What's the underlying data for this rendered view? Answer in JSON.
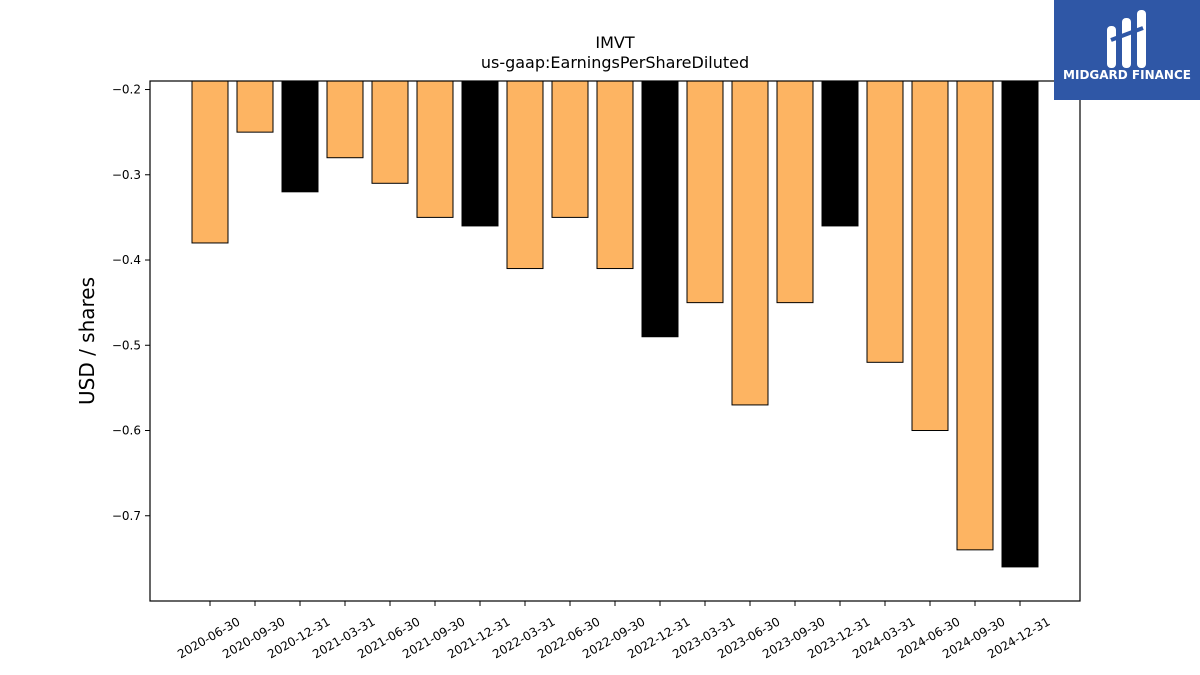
{
  "logo": {
    "text": "MIDGARD FINANCE",
    "background": "#2f57a6"
  },
  "chart_data": {
    "type": "bar",
    "title": "IMVT",
    "subtitle": "us-gaap:EarningsPerShareDiluted",
    "ylabel": "USD / shares",
    "xlabel": "",
    "ylim": [
      -0.8,
      -0.19
    ],
    "yticks": [
      -0.2,
      -0.3,
      -0.4,
      -0.5,
      -0.6,
      -0.7
    ],
    "yticklabels": [
      "−0.2",
      "−0.3",
      "−0.4",
      "−0.5",
      "−0.6",
      "−0.7"
    ],
    "grid": false,
    "colors": {
      "quarterly": "#fdb462",
      "year_end": "#000000",
      "edge": "#000000"
    },
    "categories": [
      "2020-06-30",
      "2020-09-30",
      "2020-12-31",
      "2021-03-31",
      "2021-06-30",
      "2021-09-30",
      "2021-12-31",
      "2022-03-31",
      "2022-06-30",
      "2022-09-30",
      "2022-12-31",
      "2023-03-31",
      "2023-06-30",
      "2023-09-30",
      "2023-12-31",
      "2024-03-31",
      "2024-06-30",
      "2024-09-30",
      "2024-12-31"
    ],
    "values": [
      -0.38,
      -0.25,
      -0.32,
      -0.28,
      -0.31,
      -0.35,
      -0.36,
      -0.41,
      -0.35,
      -0.41,
      -0.49,
      -0.45,
      -0.57,
      -0.45,
      -0.36,
      -0.52,
      -0.6,
      -0.74,
      -0.76
    ],
    "year_end": [
      false,
      false,
      true,
      false,
      false,
      false,
      true,
      false,
      false,
      false,
      true,
      false,
      false,
      false,
      true,
      false,
      false,
      false,
      true
    ]
  }
}
